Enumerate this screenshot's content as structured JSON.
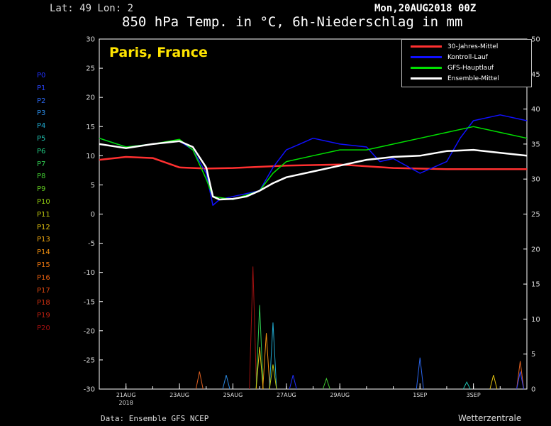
{
  "header": {
    "latlon": "Lat: 49 Lon: 2",
    "run": "Mon,20AUG2018 00Z",
    "title": "850 hPa Temp. in °C, 6h-Niederschlag in mm",
    "place": "Paris, France"
  },
  "footer": {
    "source": "Data: Ensemble GFS NCEP",
    "brand": "Wetterzentrale"
  },
  "members": [
    {
      "label": "P0",
      "color": "#2030ff"
    },
    {
      "label": "P1",
      "color": "#2a44ff"
    },
    {
      "label": "P2",
      "color": "#2a66ee"
    },
    {
      "label": "P3",
      "color": "#2a88e0"
    },
    {
      "label": "P4",
      "color": "#20aad0"
    },
    {
      "label": "P5",
      "color": "#20c0b0"
    },
    {
      "label": "P6",
      "color": "#20c880"
    },
    {
      "label": "P7",
      "color": "#30c850"
    },
    {
      "label": "P8",
      "color": "#40c830"
    },
    {
      "label": "P9",
      "color": "#60c820"
    },
    {
      "label": "P10",
      "color": "#90c810"
    },
    {
      "label": "P11",
      "color": "#c0c810"
    },
    {
      "label": "P12",
      "color": "#e0c010"
    },
    {
      "label": "P13",
      "color": "#f0a810"
    },
    {
      "label": "P14",
      "color": "#f09010"
    },
    {
      "label": "P15",
      "color": "#f07810"
    },
    {
      "label": "P16",
      "color": "#e86010"
    },
    {
      "label": "P17",
      "color": "#e04810"
    },
    {
      "label": "P18",
      "color": "#d03010"
    },
    {
      "label": "P19",
      "color": "#c02010"
    },
    {
      "label": "P20",
      "color": "#a01010"
    }
  ],
  "chart_data": {
    "type": "line",
    "title": "850 hPa Temp. in °C, 6h-Niederschlag in mm",
    "y_left": {
      "min": -30,
      "max": 30,
      "ticks": [
        30,
        25,
        20,
        15,
        10,
        5,
        0,
        -5,
        -10,
        -15,
        -20,
        -25,
        -30
      ],
      "unit": "°C"
    },
    "y_right": {
      "min": 0,
      "max": 50,
      "ticks": [
        50,
        45,
        40,
        35,
        30,
        25,
        20,
        15,
        10,
        5,
        0
      ],
      "unit": "mm"
    },
    "x": {
      "start": "2018-08-20T00",
      "end": "2018-09-05T00",
      "ticks": [
        {
          "date": "2018-08-21",
          "label": "21AUG",
          "sub": "2018"
        },
        {
          "date": "2018-08-23",
          "label": "23AUG"
        },
        {
          "date": "2018-08-25",
          "label": "25AUG"
        },
        {
          "date": "2018-08-27",
          "label": "27AUG"
        },
        {
          "date": "2018-08-29",
          "label": "29AUG"
        },
        {
          "date": "2018-09-01",
          "label": "1SEP"
        },
        {
          "date": "2018-09-03",
          "label": "3SEP"
        }
      ]
    },
    "legend": {
      "position": "top-right",
      "entries": [
        {
          "name": "30-Jahres-Mittel",
          "color": "#ff3030"
        },
        {
          "name": "Kontroll-Lauf",
          "color": "#1010ff"
        },
        {
          "name": "GFS-Hauptlauf",
          "color": "#00e000"
        },
        {
          "name": "Ensemble-Mittel",
          "color": "#ffffff"
        }
      ]
    },
    "series": [
      {
        "name": "30-Jahres-Mittel",
        "color": "#ff3030",
        "width": 2.5,
        "points": [
          [
            "2018-08-20",
            9.3
          ],
          [
            "2018-08-21",
            9.8
          ],
          [
            "2018-08-22",
            9.6
          ],
          [
            "2018-08-23",
            8.0
          ],
          [
            "2018-08-24",
            7.8
          ],
          [
            "2018-08-25",
            7.9
          ],
          [
            "2018-08-27",
            8.3
          ],
          [
            "2018-08-29",
            8.5
          ],
          [
            "2018-08-31",
            7.9
          ],
          [
            "2018-09-02",
            7.7
          ],
          [
            "2018-09-05",
            7.7
          ]
        ]
      },
      {
        "name": "Kontroll-Lauf",
        "color": "#1010ff",
        "width": 1.5,
        "points": [
          [
            "2018-08-20",
            13
          ],
          [
            "2018-08-21",
            11.5
          ],
          [
            "2018-08-22",
            12
          ],
          [
            "2018-08-23",
            12.5
          ],
          [
            "2018-08-23T12",
            11
          ],
          [
            "2018-08-24",
            7
          ],
          [
            "2018-08-24T06",
            1.5
          ],
          [
            "2018-08-24T12",
            2.5
          ],
          [
            "2018-08-25",
            3
          ],
          [
            "2018-08-26",
            4
          ],
          [
            "2018-08-26T12",
            8
          ],
          [
            "2018-08-27",
            11
          ],
          [
            "2018-08-27T12",
            12
          ],
          [
            "2018-08-28",
            13
          ],
          [
            "2018-08-29",
            12
          ],
          [
            "2018-08-30",
            11.5
          ],
          [
            "2018-08-30T12",
            9
          ],
          [
            "2018-08-31",
            9.5
          ],
          [
            "2018-09-01",
            7
          ],
          [
            "2018-09-02",
            9
          ],
          [
            "2018-09-02T12",
            13
          ],
          [
            "2018-09-03",
            16
          ],
          [
            "2018-09-04",
            17
          ],
          [
            "2018-09-05",
            16
          ]
        ]
      },
      {
        "name": "GFS-Hauptlauf",
        "color": "#00e000",
        "width": 1.5,
        "points": [
          [
            "2018-08-20",
            13
          ],
          [
            "2018-08-21",
            11.5
          ],
          [
            "2018-08-22",
            12
          ],
          [
            "2018-08-23",
            12.8
          ],
          [
            "2018-08-23T12",
            11
          ],
          [
            "2018-08-24",
            6
          ],
          [
            "2018-08-24T06",
            3
          ],
          [
            "2018-08-25",
            2.5
          ],
          [
            "2018-08-26",
            4
          ],
          [
            "2018-08-26T12",
            7
          ],
          [
            "2018-08-27",
            9
          ],
          [
            "2018-08-28",
            10
          ],
          [
            "2018-08-29",
            11
          ],
          [
            "2018-08-30",
            11
          ],
          [
            "2018-08-31",
            12
          ],
          [
            "2018-09-01",
            13
          ],
          [
            "2018-09-02",
            14
          ],
          [
            "2018-09-03",
            15
          ],
          [
            "2018-09-04",
            14
          ],
          [
            "2018-09-05",
            13
          ]
        ]
      },
      {
        "name": "Ensemble-Mittel",
        "color": "#ffffff",
        "width": 2.5,
        "points": [
          [
            "2018-08-20",
            12
          ],
          [
            "2018-08-21",
            11.3
          ],
          [
            "2018-08-22",
            12
          ],
          [
            "2018-08-23",
            12.5
          ],
          [
            "2018-08-23T12",
            11.5
          ],
          [
            "2018-08-24",
            8
          ],
          [
            "2018-08-24T06",
            3
          ],
          [
            "2018-08-24T12",
            2.5
          ],
          [
            "2018-08-25",
            2.6
          ],
          [
            "2018-08-25T12",
            3
          ],
          [
            "2018-08-26",
            4
          ],
          [
            "2018-08-26T12",
            5.3
          ],
          [
            "2018-08-27",
            6.3
          ],
          [
            "2018-08-28",
            7.3
          ],
          [
            "2018-08-29",
            8.3
          ],
          [
            "2018-08-30",
            9.3
          ],
          [
            "2018-08-31",
            9.8
          ],
          [
            "2018-09-01",
            10
          ],
          [
            "2018-09-02",
            10.8
          ],
          [
            "2018-09-03",
            11
          ],
          [
            "2018-09-04",
            10.5
          ],
          [
            "2018-09-05",
            10
          ]
        ]
      }
    ],
    "precipitation": [
      {
        "date": "2018-08-23T18",
        "mm": 2.5,
        "color": "#e06020"
      },
      {
        "date": "2018-08-24T18",
        "mm": 2.0,
        "color": "#2a88e0"
      },
      {
        "date": "2018-08-25T18",
        "mm": 17.5,
        "color": "#a01010"
      },
      {
        "date": "2018-08-26",
        "mm": 12.0,
        "color": "#30c850"
      },
      {
        "date": "2018-08-26",
        "mm": 6.0,
        "color": "#e0c010"
      },
      {
        "date": "2018-08-26T06",
        "mm": 8.0,
        "color": "#f09010"
      },
      {
        "date": "2018-08-26T12",
        "mm": 9.5,
        "color": "#20aad0"
      },
      {
        "date": "2018-08-26T12",
        "mm": 3.5,
        "color": "#c0c810"
      },
      {
        "date": "2018-08-27T06",
        "mm": 2.0,
        "color": "#2030ff"
      },
      {
        "date": "2018-08-28T12",
        "mm": 1.5,
        "color": "#40c830"
      },
      {
        "date": "2018-09-01",
        "mm": 4.5,
        "color": "#2a66ee"
      },
      {
        "date": "2018-09-02T18",
        "mm": 1.0,
        "color": "#20c0b0"
      },
      {
        "date": "2018-09-03T18",
        "mm": 2.0,
        "color": "#e0c010"
      },
      {
        "date": "2018-09-04T18",
        "mm": 4.0,
        "color": "#e06020"
      },
      {
        "date": "2018-09-04T18",
        "mm": 2.5,
        "color": "#2a44ff"
      }
    ]
  }
}
